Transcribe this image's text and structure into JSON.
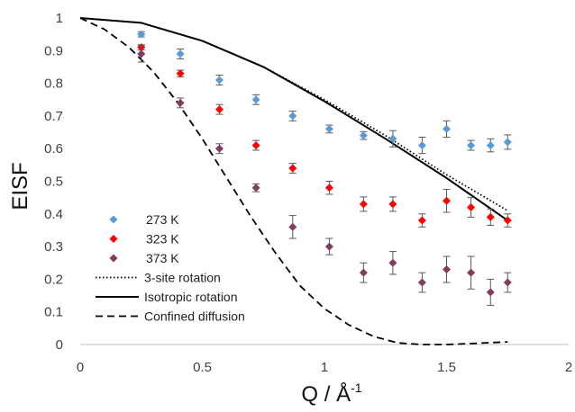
{
  "chart_data": {
    "type": "scatter",
    "xlabel": "Q / Å",
    "xlabel_sup": "-1",
    "ylabel": "EISF",
    "xlim": [
      0,
      2
    ],
    "ylim": [
      0,
      1
    ],
    "x_ticks": [
      "0",
      "0.5",
      "1",
      "1.5",
      "2"
    ],
    "y_ticks": [
      "0",
      "0.1",
      "0.2",
      "0.3",
      "0.4",
      "0.5",
      "0.6",
      "0.7",
      "0.8",
      "0.9",
      "1"
    ],
    "grid": false,
    "legend_position": "bottom-left",
    "series": [
      {
        "name": "273 K",
        "kind": "points",
        "color": "#5b9bd5",
        "x": [
          0.25,
          0.41,
          0.57,
          0.72,
          0.87,
          1.02,
          1.16,
          1.28,
          1.4,
          1.5,
          1.6,
          1.68,
          1.75
        ],
        "y": [
          0.95,
          0.89,
          0.81,
          0.75,
          0.7,
          0.66,
          0.64,
          0.63,
          0.61,
          0.66,
          0.61,
          0.61,
          0.62
        ],
        "err": [
          0.008,
          0.015,
          0.015,
          0.015,
          0.015,
          0.012,
          0.012,
          0.025,
          0.025,
          0.025,
          0.015,
          0.02,
          0.022
        ]
      },
      {
        "name": "323 K",
        "kind": "points",
        "color": "#ff0000",
        "x": [
          0.25,
          0.41,
          0.57,
          0.72,
          0.87,
          1.02,
          1.16,
          1.28,
          1.4,
          1.5,
          1.6,
          1.68,
          1.75
        ],
        "y": [
          0.91,
          0.83,
          0.72,
          0.61,
          0.54,
          0.48,
          0.43,
          0.43,
          0.38,
          0.44,
          0.42,
          0.39,
          0.38
        ],
        "err": [
          0.008,
          0.01,
          0.015,
          0.015,
          0.015,
          0.02,
          0.022,
          0.022,
          0.02,
          0.035,
          0.03,
          0.025,
          0.02
        ]
      },
      {
        "name": "373 K",
        "kind": "points",
        "color": "#843c5c",
        "x": [
          0.25,
          0.41,
          0.57,
          0.72,
          0.87,
          1.02,
          1.16,
          1.28,
          1.4,
          1.5,
          1.6,
          1.68,
          1.75
        ],
        "y": [
          0.89,
          0.74,
          0.6,
          0.48,
          0.36,
          0.3,
          0.22,
          0.25,
          0.19,
          0.23,
          0.22,
          0.16,
          0.19
        ],
        "err": [
          0.025,
          0.015,
          0.015,
          0.012,
          0.035,
          0.025,
          0.03,
          0.035,
          0.03,
          0.04,
          0.05,
          0.04,
          0.03
        ]
      },
      {
        "name": "3-site rotation",
        "kind": "line",
        "dash": "dotted",
        "color": "#000000",
        "x": [
          0,
          0.25,
          0.5,
          0.75,
          1.0,
          1.25,
          1.5,
          1.75
        ],
        "y": [
          1.0,
          0.985,
          0.93,
          0.85,
          0.75,
          0.64,
          0.52,
          0.41
        ]
      },
      {
        "name": "Isotropic rotation",
        "kind": "line",
        "dash": "solid",
        "color": "#000000",
        "x": [
          0,
          0.25,
          0.5,
          0.75,
          1.0,
          1.25,
          1.5,
          1.75
        ],
        "y": [
          1.0,
          0.985,
          0.93,
          0.85,
          0.745,
          0.63,
          0.51,
          0.38
        ]
      },
      {
        "name": "Confined diffusion",
        "kind": "line",
        "dash": "dashed",
        "color": "#000000",
        "x": [
          0,
          0.1,
          0.2,
          0.3,
          0.4,
          0.5,
          0.6,
          0.7,
          0.8,
          0.9,
          1.0,
          1.1,
          1.2,
          1.3,
          1.4,
          1.5,
          1.6,
          1.75
        ],
        "y": [
          1.0,
          0.965,
          0.91,
          0.835,
          0.74,
          0.63,
          0.51,
          0.39,
          0.28,
          0.18,
          0.11,
          0.06,
          0.025,
          0.005,
          0.0,
          0.0,
          0.003,
          0.008
        ]
      }
    ]
  }
}
